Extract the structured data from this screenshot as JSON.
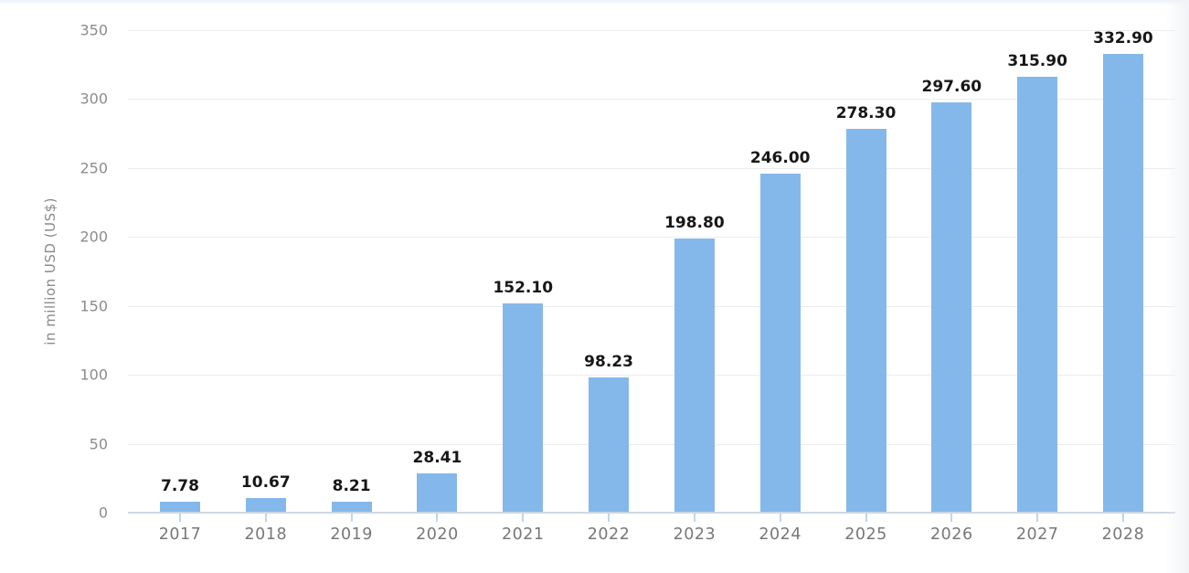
{
  "chart_data": {
    "type": "bar",
    "title": "",
    "xlabel": "",
    "ylabel": "in million USD (US$)",
    "categories": [
      "2017",
      "2018",
      "2019",
      "2020",
      "2021",
      "2022",
      "2023",
      "2024",
      "2025",
      "2026",
      "2027",
      "2028"
    ],
    "values": [
      7.78,
      10.67,
      8.21,
      28.41,
      152.1,
      98.23,
      198.8,
      246.0,
      278.3,
      297.6,
      315.9,
      332.9
    ],
    "value_labels": [
      "7.78",
      "10.67",
      "8.21",
      "28.41",
      "152.10",
      "98.23",
      "198.80",
      "246.00",
      "278.30",
      "297.60",
      "315.90",
      "332.90"
    ],
    "ylim": [
      0,
      350
    ],
    "yticks": [
      0,
      50,
      100,
      150,
      200,
      250,
      300,
      350
    ],
    "grid": "horizontal",
    "legend": "none"
  },
  "colors": {
    "bar": "#85b8ea",
    "gridline": "#ececec",
    "axis_line": "#ccd7e3",
    "tick_mark": "#c3d6e8",
    "value_label": "#171717",
    "year_label": "#787878",
    "ytick_label": "#8c8c8c",
    "ylabel": "#8a8a8a",
    "background": "#ffffff"
  }
}
